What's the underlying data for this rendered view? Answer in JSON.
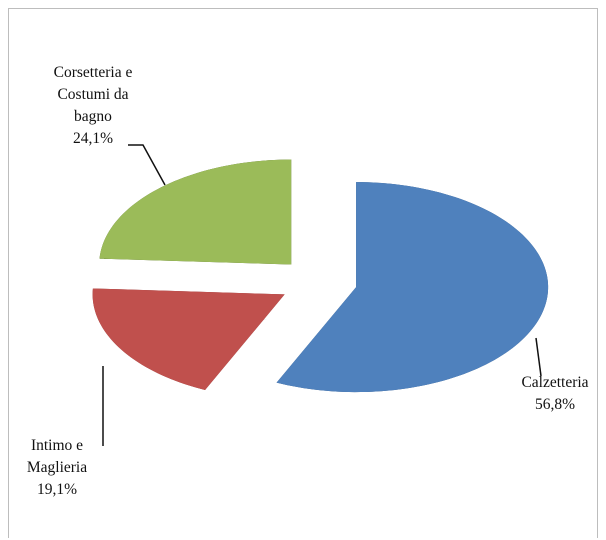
{
  "chart_data": {
    "type": "pie",
    "categories": [
      "Calzetteria",
      "Intimo e Maglieria",
      "Corsetteria e Costumi da bagno"
    ],
    "values": [
      56.8,
      19.1,
      24.1
    ],
    "value_labels": [
      "56,8%",
      "19,1%",
      "24,1%"
    ],
    "colors": [
      "#4f81bd",
      "#c0504d",
      "#9bbb59"
    ],
    "three_d": true,
    "exploded": true
  }
}
